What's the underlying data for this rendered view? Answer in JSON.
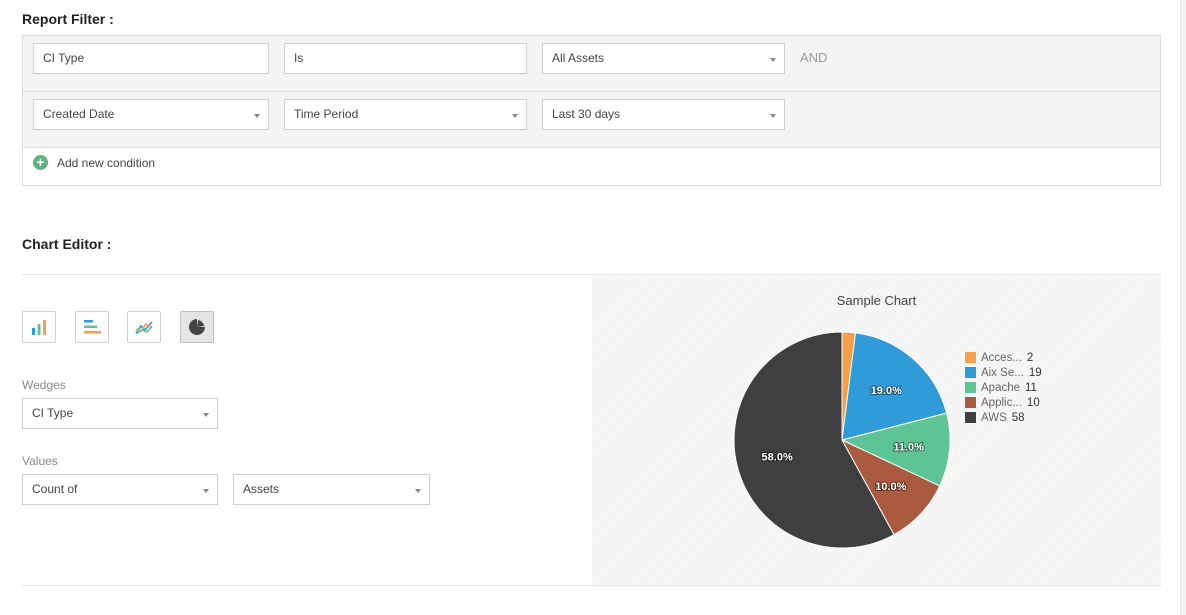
{
  "report_filter": {
    "title": "Report Filter :",
    "rows": [
      {
        "field": "CI Type",
        "operator": "Is",
        "value": "All Assets",
        "conjunction": "AND"
      },
      {
        "field": "Created Date",
        "operator": "Time Period",
        "value": "Last 30 days"
      }
    ],
    "add_condition_label": "Add new condition"
  },
  "chart_editor": {
    "title": "Chart Editor :",
    "chart_types": [
      {
        "icon": "vertical-bar-chart-icon",
        "selected": false
      },
      {
        "icon": "horizontal-bar-chart-icon",
        "selected": false
      },
      {
        "icon": "line-chart-icon",
        "selected": false
      },
      {
        "icon": "pie-chart-icon",
        "selected": true
      }
    ],
    "wedges_label": "Wedges",
    "wedges_value": "CI Type",
    "values_label": "Values",
    "values_aggregate": "Count of",
    "values_field": "Assets"
  },
  "chart_data": {
    "type": "pie",
    "title": "Sample Chart",
    "series": [
      {
        "name": "Acces...",
        "value": 2,
        "color": "#f7a04b",
        "label": ""
      },
      {
        "name": "Aix Se...",
        "value": 19,
        "color": "#2f9bd9",
        "label": "19.0%"
      },
      {
        "name": "Apache",
        "value": 11,
        "color": "#5cc495",
        "label": "11.0%"
      },
      {
        "name": "Applic...",
        "value": 10,
        "color": "#a95a3f",
        "label": "10.0%"
      },
      {
        "name": "AWS",
        "value": 58,
        "color": "#3f3f42",
        "label": "58.0%"
      }
    ],
    "legend_position": "right"
  }
}
